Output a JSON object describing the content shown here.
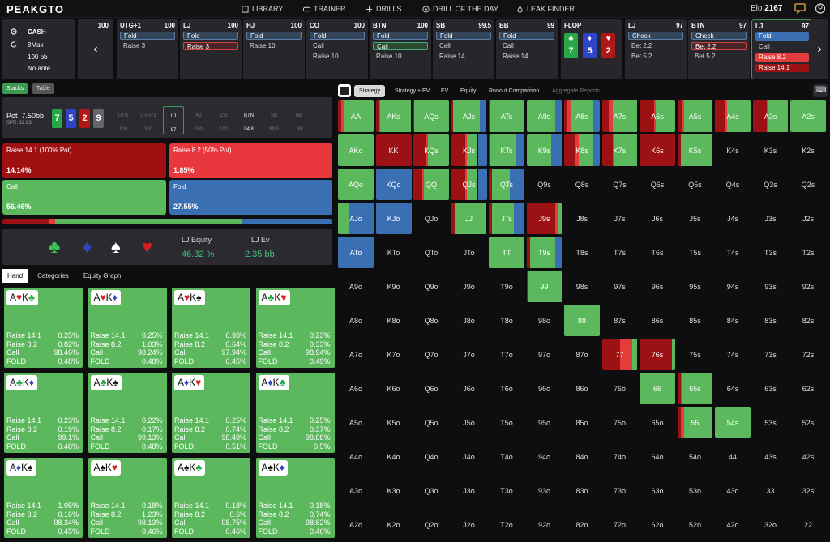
{
  "brand": "PEAKGTO",
  "nav": [
    "LIBRARY",
    "TRAINER",
    "DRILLS",
    "DRILL OF THE DAY",
    "LEAK FINDER"
  ],
  "elo": {
    "label": "Elo",
    "value": "2167"
  },
  "game": {
    "type": "CASH",
    "players": "8Max",
    "depth": "100 bb",
    "ante": "No ante"
  },
  "action_cards": [
    {
      "pos": "",
      "stack": "100",
      "opts": []
    },
    {
      "pos": "UTG+1",
      "stack": "100",
      "opts": [
        "Fold",
        "Raise 3"
      ]
    },
    {
      "pos": "LJ",
      "stack": "100",
      "opts": [
        "Fold",
        "Raise 3"
      ]
    },
    {
      "pos": "HJ",
      "stack": "100",
      "opts": [
        "Fold",
        "Raise 10"
      ]
    },
    {
      "pos": "CO",
      "stack": "100",
      "opts": [
        "Fold",
        "Call",
        "Raise 10"
      ]
    },
    {
      "pos": "BTN",
      "stack": "100",
      "opts": [
        "Fold",
        "Call",
        "Raise 10"
      ]
    },
    {
      "pos": "SB",
      "stack": "99.5",
      "opts": [
        "Fold",
        "Call",
        "Raise 14"
      ]
    },
    {
      "pos": "BB",
      "stack": "99",
      "opts": [
        "Fold",
        "Call",
        "Raise 14"
      ]
    },
    {
      "pos": "LJ",
      "stack": "97",
      "opts": [
        "Check",
        "Bet 2.2",
        "Bet 5.2"
      ]
    },
    {
      "pos": "BTN",
      "stack": "97",
      "opts": [
        "Check",
        "Bet 2.2",
        "Bet 5.2"
      ]
    },
    {
      "pos": "LJ",
      "stack": "97",
      "opts": [
        "Fold",
        "Call",
        "Raise 8.2",
        "Raise 14.1"
      ]
    }
  ],
  "flop": {
    "label": "FLOP",
    "cards": [
      {
        "rank": "7",
        "suit": "♣"
      },
      {
        "rank": "5",
        "suit": "♦"
      },
      {
        "rank": "2",
        "suit": "♥"
      }
    ]
  },
  "left_buttons": [
    "Stacks",
    "Table"
  ],
  "pot": {
    "label": "Pot",
    "value": "7.50bb",
    "spr": "SPR: 12.93"
  },
  "board": [
    "7",
    "5",
    "2",
    "9"
  ],
  "seats": [
    {
      "n": "UTG",
      "s": "100"
    },
    {
      "n": "UTG+1",
      "s": "100"
    },
    {
      "n": "LJ",
      "s": "97"
    },
    {
      "n": "HJ",
      "s": "100"
    },
    {
      "n": "CO",
      "s": "100"
    },
    {
      "n": "BTN",
      "s": "94.8"
    },
    {
      "n": "SB",
      "s": "99.5"
    },
    {
      "n": "BB",
      "s": "99"
    }
  ],
  "actions": [
    {
      "label": "Raise 14.1 (100% Pot)",
      "pct": "14.14%"
    },
    {
      "label": "Raise 8.2 (50% Pot)",
      "pct": "1.85%"
    },
    {
      "label": "Call",
      "pct": "56.46%"
    },
    {
      "label": "Fold",
      "pct": "27.55%"
    }
  ],
  "freq": [
    14.14,
    1.85,
    56.46,
    27.55
  ],
  "equity": {
    "eq_label": "LJ Equity",
    "eq_value": "46.32 %",
    "ev_label": "LJ Ev",
    "ev_value": "2.35 bb"
  },
  "hand_tabs": [
    "Hand",
    "Categories",
    "Equity Graph"
  ],
  "combos": [
    {
      "c": [
        [
          "A",
          "♥",
          "r"
        ],
        [
          "K",
          "♣",
          "g"
        ]
      ],
      "v": [
        "0.25%",
        "0.82%",
        "98.46%",
        "0.48%"
      ]
    },
    {
      "c": [
        [
          "A",
          "♥",
          "r"
        ],
        [
          "K",
          "♦",
          "b"
        ]
      ],
      "v": [
        "0.25%",
        "1.03%",
        "98.24%",
        "0.48%"
      ]
    },
    {
      "c": [
        [
          "A",
          "♥",
          "r"
        ],
        [
          "K",
          "♠",
          "k"
        ]
      ],
      "v": [
        "0.98%",
        "0.64%",
        "97.94%",
        "0.45%"
      ]
    },
    {
      "c": [
        [
          "A",
          "♣",
          "g"
        ],
        [
          "K",
          "♥",
          "r"
        ]
      ],
      "v": [
        "0.23%",
        "0.33%",
        "98.94%",
        "0.49%"
      ]
    },
    {
      "c": [
        [
          "A",
          "♣",
          "g"
        ],
        [
          "K",
          "♦",
          "b"
        ]
      ],
      "v": [
        "0.23%",
        "0.19%",
        "99.1%",
        "0.48%"
      ]
    },
    {
      "c": [
        [
          "A",
          "♣",
          "g"
        ],
        [
          "K",
          "♠",
          "k"
        ]
      ],
      "v": [
        "0.22%",
        "0.17%",
        "99.13%",
        "0.48%"
      ]
    },
    {
      "c": [
        [
          "A",
          "♦",
          "b"
        ],
        [
          "K",
          "♥",
          "r"
        ]
      ],
      "v": [
        "0.25%",
        "0.74%",
        "98.49%",
        "0.51%"
      ]
    },
    {
      "c": [
        [
          "A",
          "♦",
          "b"
        ],
        [
          "K",
          "♣",
          "g"
        ]
      ],
      "v": [
        "0.25%",
        "0.37%",
        "98.88%",
        "0.5%"
      ]
    },
    {
      "c": [
        [
          "A",
          "♦",
          "b"
        ],
        [
          "K",
          "♠",
          "k"
        ]
      ],
      "v": [
        "1.05%",
        "0.16%",
        "98.34%",
        "0.45%"
      ]
    },
    {
      "c": [
        [
          "A",
          "♠",
          "k"
        ],
        [
          "K",
          "♥",
          "r"
        ]
      ],
      "v": [
        "0.18%",
        "1.23%",
        "98.13%",
        "0.46%"
      ]
    },
    {
      "c": [
        [
          "A",
          "♠",
          "k"
        ],
        [
          "K",
          "♣",
          "g"
        ]
      ],
      "v": [
        "0.18%",
        "0.6%",
        "98.75%",
        "0.46%"
      ]
    },
    {
      "c": [
        [
          "A",
          "♠",
          "k"
        ],
        [
          "K",
          "♦",
          "b"
        ]
      ],
      "v": [
        "0.18%",
        "0.74%",
        "98.62%",
        "0.46%"
      ]
    }
  ],
  "row_labels": [
    "Raise 14.1",
    "Raise 8.2",
    "Call",
    "FOLD"
  ],
  "right_tabs": [
    "Strategy",
    "Strategy + EV",
    "EV",
    "Equity",
    "Runout Comparison",
    "Aggregate Reports"
  ],
  "colors": {
    "raise_big": "#9c1214",
    "raise_small": "#e33c3c",
    "call": "#5cb85c",
    "fold": "#3a6fb4"
  },
  "matrix": [
    [
      "AA",
      "AKs",
      "AQs",
      "AJs",
      "ATs",
      "A9s",
      "A8s",
      "A7s",
      "A6s",
      "A5s",
      "A4s",
      "A3s",
      "A2s"
    ],
    [
      "AKo",
      "KK",
      "KQs",
      "KJs",
      "KTs",
      "K9s",
      "K8s",
      "K7s",
      "K6s",
      "K5s",
      "K4s",
      "K3s",
      "K2s"
    ],
    [
      "AQo",
      "KQo",
      "QQ",
      "QJs",
      "QTs",
      "Q9s",
      "Q8s",
      "Q7s",
      "Q6s",
      "Q5s",
      "Q4s",
      "Q3s",
      "Q2s"
    ],
    [
      "AJo",
      "KJo",
      "QJo",
      "JJ",
      "JTs",
      "J9s",
      "J8s",
      "J7s",
      "J6s",
      "J5s",
      "J4s",
      "J3s",
      "J2s"
    ],
    [
      "ATo",
      "KTo",
      "QTo",
      "JTo",
      "TT",
      "T9s",
      "T8s",
      "T7s",
      "T6s",
      "T5s",
      "T4s",
      "T3s",
      "T2s"
    ],
    [
      "A9o",
      "K9o",
      "Q9o",
      "J9o",
      "T9o",
      "99",
      "98s",
      "97s",
      "96s",
      "95s",
      "94s",
      "93s",
      "92s"
    ],
    [
      "A8o",
      "K8o",
      "Q8o",
      "J8o",
      "T8o",
      "98o",
      "88",
      "87s",
      "86s",
      "85s",
      "84s",
      "83s",
      "82s"
    ],
    [
      "A7o",
      "K7o",
      "Q7o",
      "J7o",
      "T7o",
      "97o",
      "87o",
      "77",
      "76s",
      "75s",
      "74s",
      "73s",
      "72s"
    ],
    [
      "A6o",
      "K6o",
      "Q6o",
      "J6o",
      "T6o",
      "96o",
      "86o",
      "76o",
      "66",
      "65s",
      "64s",
      "63s",
      "62s"
    ],
    [
      "A5o",
      "K5o",
      "Q5o",
      "J5o",
      "T5o",
      "95o",
      "85o",
      "75o",
      "65o",
      "55",
      "54s",
      "53s",
      "52s"
    ],
    [
      "A4o",
      "K4o",
      "Q4o",
      "J4o",
      "T4o",
      "94o",
      "84o",
      "74o",
      "64o",
      "54o",
      "44",
      "43s",
      "42s"
    ],
    [
      "A3o",
      "K3o",
      "Q3o",
      "J3o",
      "T3o",
      "93o",
      "83o",
      "73o",
      "63o",
      "53o",
      "43o",
      "33",
      "32s"
    ],
    [
      "A2o",
      "K2o",
      "Q2o",
      "J2o",
      "T2o",
      "92o",
      "82o",
      "72o",
      "62o",
      "52o",
      "42o",
      "32o",
      "22"
    ]
  ],
  "strategy": {
    "AA": [
      0.1,
      0.05,
      0.85,
      0
    ],
    "AKs": [
      0.1,
      0.03,
      0.87,
      0
    ],
    "AQs": [
      0.03,
      0,
      0.97,
      0
    ],
    "AJs": [
      0.05,
      0,
      0.75,
      0.2
    ],
    "ATs": [
      0.02,
      0,
      0.98,
      0
    ],
    "A9s": [
      0,
      0,
      0.8,
      0.2
    ],
    "A8s": [
      0.1,
      0.1,
      0.6,
      0.2
    ],
    "A7s": [
      0.2,
      0.1,
      0.7,
      0
    ],
    "A6s": [
      0.4,
      0.05,
      0.55,
      0
    ],
    "A5s": [
      0.15,
      0.05,
      0.8,
      0
    ],
    "A4s": [
      0.3,
      0.05,
      0.65,
      0
    ],
    "A3s": [
      0.4,
      0.05,
      0.55,
      0
    ],
    "A2s": [
      0,
      0,
      1,
      0
    ],
    "AKo": [
      0,
      0,
      1,
      0
    ],
    "KK": [
      1,
      0,
      0,
      0
    ],
    "KQs": [
      0.35,
      0.05,
      0.6,
      0
    ],
    "KJs": [
      0.4,
      0.05,
      0.3,
      0.25
    ],
    "KTs": [
      0.05,
      0,
      0.7,
      0.25
    ],
    "K9s": [
      0,
      0,
      0.7,
      0.3
    ],
    "K8s": [
      0.3,
      0.1,
      0.4,
      0.2
    ],
    "K7s": [
      0.3,
      0.05,
      0.65,
      0
    ],
    "K6s": [
      1,
      0,
      0,
      0
    ],
    "K5s": [
      0.1,
      0,
      0.9,
      0
    ],
    "AQo": [
      0,
      0,
      1,
      0
    ],
    "KQo": [
      0,
      0,
      0,
      1
    ],
    "QQ": [
      0.25,
      0.05,
      0.7,
      0
    ],
    "QJs": [
      0.4,
      0.05,
      0.3,
      0.25
    ],
    "QTs": [
      0.1,
      0,
      0.5,
      0.4
    ],
    "AJo": [
      0,
      0,
      0.3,
      0.7
    ],
    "KJo": [
      0,
      0,
      0,
      1
    ],
    "JJ": [
      0.1,
      0,
      0.9,
      0
    ],
    "JTs": [
      0.1,
      0,
      0.6,
      0.3
    ],
    "J9s": [
      0.8,
      0.1,
      0.1,
      0
    ],
    "ATo": [
      0,
      0,
      0,
      1
    ],
    "TT": [
      0,
      0,
      1,
      0
    ],
    "T9s": [
      0.1,
      0,
      0.7,
      0.2
    ],
    "99": [
      0.05,
      0,
      0.95,
      0
    ],
    "88": [
      0,
      0,
      1,
      0
    ],
    "77": [
      0.5,
      0.35,
      0.15,
      0
    ],
    "76s": [
      0.9,
      0,
      0.1,
      0
    ],
    "66": [
      0,
      0,
      1,
      0
    ],
    "65s": [
      0.1,
      0.05,
      0.85,
      0
    ],
    "55": [
      0.1,
      0.1,
      0.8,
      0
    ],
    "54s": [
      0,
      0,
      1,
      0
    ]
  }
}
